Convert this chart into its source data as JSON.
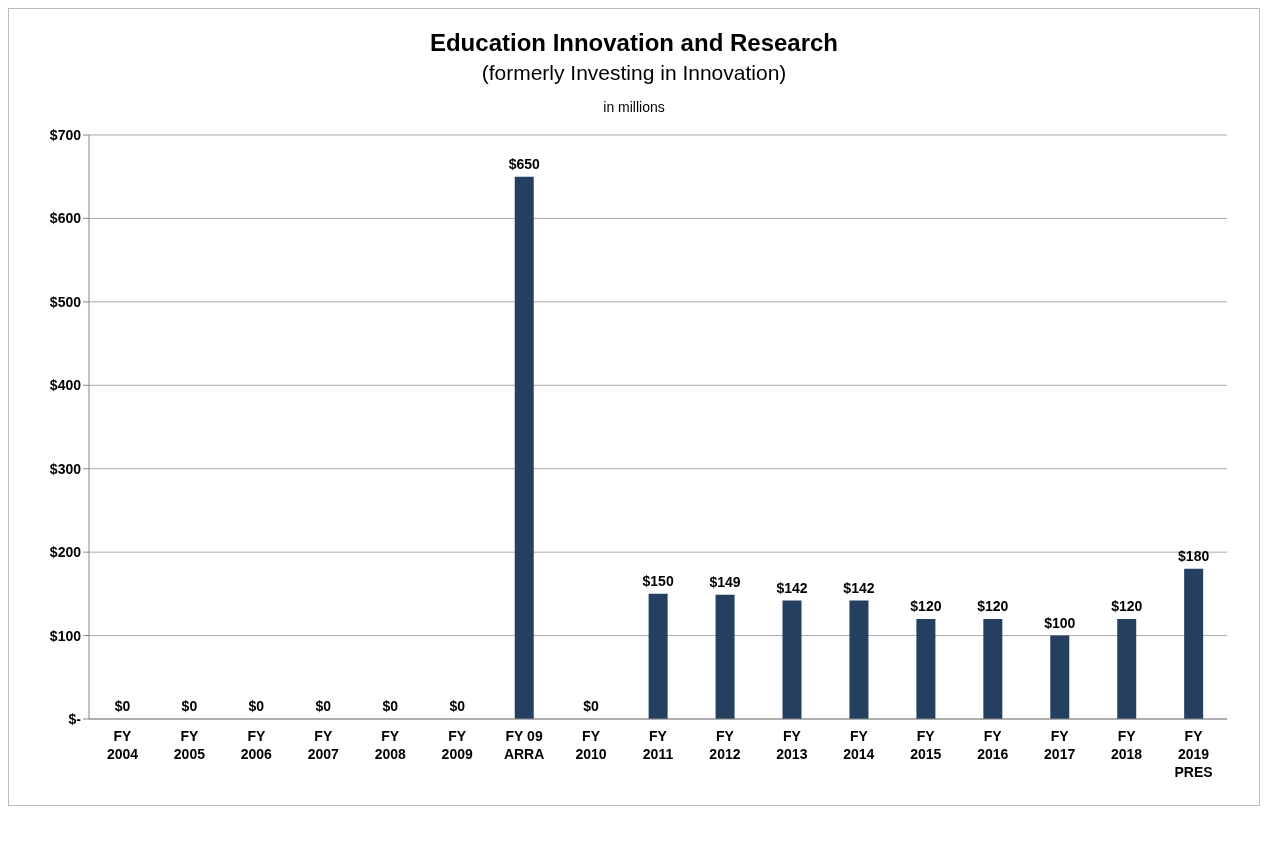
{
  "chart_data": {
    "type": "bar",
    "title": "Education Innovation and Research",
    "subtitle": "(formerly Investing in Innovation)",
    "annotations": [
      "in millions"
    ],
    "categories": [
      "FY\n2004",
      "FY\n2005",
      "FY\n2006",
      "FY\n2007",
      "FY\n2008",
      "FY\n2009",
      "FY 09\nARRA",
      "FY\n2010",
      "FY\n2011",
      "FY\n2012",
      "FY\n2013",
      "FY\n2014",
      "FY\n2015",
      "FY\n2016",
      "FY\n2017",
      "FY\n2018",
      "FY\n2019\nPRES"
    ],
    "values": [
      0,
      0,
      0,
      0,
      0,
      0,
      650,
      0,
      150,
      149,
      142,
      142,
      120,
      120,
      100,
      120,
      180
    ],
    "value_labels": [
      "$0",
      "$0",
      "$0",
      "$0",
      "$0",
      "$0",
      "$650",
      "$0",
      "$150",
      "$149",
      "$142",
      "$142",
      "$120",
      "$120",
      "$100",
      "$120",
      "$180"
    ],
    "color": "#243f60",
    "ylim": [
      0,
      700
    ],
    "yticks": [
      {
        "value": 0,
        "label": "$-"
      },
      {
        "value": 100,
        "label": "$100"
      },
      {
        "value": 200,
        "label": "$200"
      },
      {
        "value": 300,
        "label": "$300"
      },
      {
        "value": 400,
        "label": "$400"
      },
      {
        "value": 500,
        "label": "$500"
      },
      {
        "value": 600,
        "label": "$600"
      },
      {
        "value": 700,
        "label": "$700"
      }
    ],
    "grid": "y",
    "legend": false
  }
}
